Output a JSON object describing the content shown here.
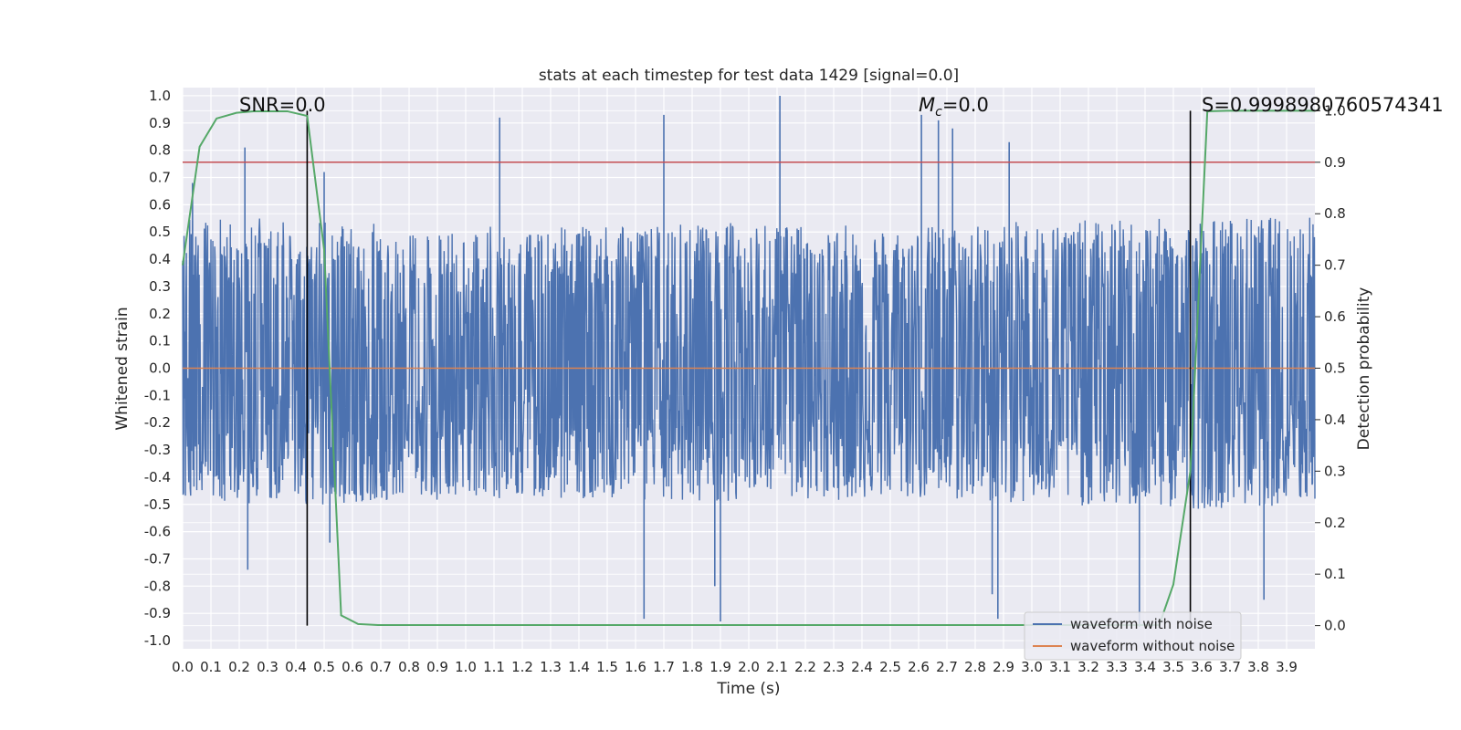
{
  "chart_data": {
    "type": "line",
    "title": "stats at each timestep for test data 1429 [signal=0.0]",
    "xlabel": "Time (s)",
    "ylabel": "Whitened strain",
    "y2label": "Detection probability",
    "xlim": [
      0.0,
      4.0
    ],
    "ylim": [
      -1.03,
      1.03
    ],
    "y2lim": [
      -0.045,
      1.045
    ],
    "xticks": [
      "0.0",
      "0.1",
      "0.2",
      "0.3",
      "0.4",
      "0.5",
      "0.6",
      "0.7",
      "0.8",
      "0.9",
      "1.0",
      "1.1",
      "1.2",
      "1.3",
      "1.4",
      "1.5",
      "1.6",
      "1.7",
      "1.8",
      "1.9",
      "2.0",
      "2.1",
      "2.2",
      "2.3",
      "2.4",
      "2.5",
      "2.6",
      "2.7",
      "2.8",
      "2.9",
      "3.0",
      "3.1",
      "3.2",
      "3.3",
      "3.4",
      "3.5",
      "3.6",
      "3.7",
      "3.8",
      "3.9"
    ],
    "yticks": [
      "1.0",
      "0.9",
      "0.8",
      "0.7",
      "0.6",
      "0.5",
      "0.4",
      "0.3",
      "0.2",
      "0.1",
      "0.0",
      "-0.1",
      "-0.2",
      "-0.3",
      "-0.4",
      "-0.5",
      "-0.6",
      "-0.7",
      "-0.8",
      "-0.9",
      "-1.0"
    ],
    "y2ticks": [
      "1.0",
      "0.9",
      "0.8",
      "0.7",
      "0.6",
      "0.5",
      "0.4",
      "0.3",
      "0.2",
      "0.1",
      "0.0"
    ],
    "grid": true,
    "legend_position": "lower-right",
    "series": [
      {
        "name": "waveform with noise",
        "color": "#4c72b0",
        "axis": "left",
        "noise_envelope": {
          "x": [
            0.0,
            0.5,
            1.0,
            1.5,
            2.0,
            2.5,
            3.0,
            3.5,
            4.0
          ],
          "upper": [
            0.55,
            0.55,
            0.52,
            0.52,
            0.54,
            0.52,
            0.54,
            0.55,
            0.56
          ],
          "lower": [
            -0.5,
            -0.5,
            -0.48,
            -0.48,
            -0.49,
            -0.48,
            -0.5,
            -0.52,
            -0.5
          ]
        },
        "peaks": [
          {
            "x": 0.035,
            "y": 0.68
          },
          {
            "x": 0.22,
            "y": 0.81
          },
          {
            "x": 0.23,
            "y": -0.74
          },
          {
            "x": 0.5,
            "y": 0.72
          },
          {
            "x": 0.52,
            "y": -0.64
          },
          {
            "x": 1.12,
            "y": 0.92
          },
          {
            "x": 1.63,
            "y": -0.92
          },
          {
            "x": 1.7,
            "y": 0.93
          },
          {
            "x": 1.88,
            "y": -0.8
          },
          {
            "x": 1.9,
            "y": -0.93
          },
          {
            "x": 2.11,
            "y": 1.0
          },
          {
            "x": 2.61,
            "y": 0.93
          },
          {
            "x": 2.67,
            "y": 0.91
          },
          {
            "x": 2.72,
            "y": 0.88
          },
          {
            "x": 2.86,
            "y": -0.83
          },
          {
            "x": 2.88,
            "y": -0.92
          },
          {
            "x": 2.92,
            "y": 0.83
          },
          {
            "x": 3.38,
            "y": -0.95
          },
          {
            "x": 3.82,
            "y": -0.85
          }
        ]
      },
      {
        "name": "waveform without noise",
        "color": "#dd8452",
        "axis": "left",
        "x": [
          0.0,
          4.0
        ],
        "y": [
          0.0,
          0.0
        ]
      },
      {
        "name": "",
        "color": "#55a868",
        "axis": "right",
        "x": [
          0.0,
          0.06,
          0.12,
          0.19,
          0.25,
          0.31,
          0.37,
          0.44,
          0.5,
          0.56,
          0.62,
          0.69,
          3.45,
          3.5,
          3.56,
          3.62,
          3.69,
          4.0
        ],
        "y": [
          0.7,
          0.93,
          0.985,
          0.996,
          0.999,
          0.999,
          0.999,
          0.99,
          0.73,
          0.02,
          0.003,
          0.001,
          0.001,
          0.08,
          0.3,
          0.999,
          1.0,
          1.0
        ]
      }
    ],
    "threshold": {
      "y2": 0.9,
      "color": "#c44e52"
    },
    "vlines": [
      {
        "x": 0.44,
        "color": "#000000"
      },
      {
        "x": 3.56,
        "color": "#000000"
      }
    ],
    "annotations": [
      {
        "text": "SNR=0.0",
        "x": 0.2
      },
      {
        "text": "M",
        "sub": "c",
        "suffix": "=0.0",
        "x": 2.6
      },
      {
        "text": "S=0.9998980760574341",
        "x": 3.6
      }
    ]
  }
}
